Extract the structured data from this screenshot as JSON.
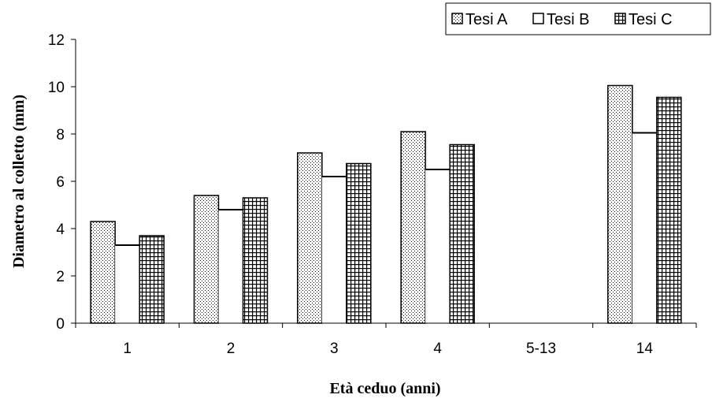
{
  "chart_data": {
    "type": "bar",
    "categories": [
      "1",
      "2",
      "3",
      "4",
      "5-13",
      "14"
    ],
    "series": [
      {
        "name": "Tesi A",
        "pattern": "dots",
        "values": [
          4.3,
          5.4,
          7.2,
          8.1,
          null,
          10.05
        ]
      },
      {
        "name": "Tesi B",
        "pattern": "plain",
        "values": [
          3.3,
          4.8,
          6.2,
          6.5,
          null,
          8.05
        ]
      },
      {
        "name": "Tesi C",
        "pattern": "grid",
        "values": [
          3.7,
          5.3,
          6.75,
          7.55,
          null,
          9.55
        ]
      }
    ],
    "xlabel": "Età ceduo (anni)",
    "ylabel": "Diametro al colletto (mm)",
    "ylim": [
      0,
      12
    ],
    "yticks": [
      "0",
      "2",
      "4",
      "6",
      "8",
      "10",
      "12"
    ],
    "legend_position": "top-right",
    "grid": false,
    "colors": {
      "bar_fill": "#ffffff",
      "stroke": "#000000"
    }
  }
}
